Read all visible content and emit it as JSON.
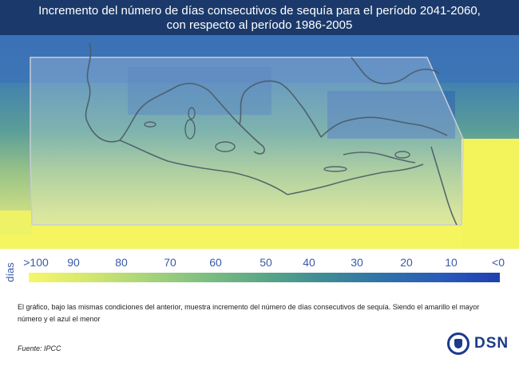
{
  "header": {
    "title_line1": "Incremento del número de días consecutivos de sequía para el período 2041-2060,",
    "title_line2": "con respecto al período 1986-2005"
  },
  "legend": {
    "unit": "días",
    "ticks": [
      ">100",
      "90",
      "80",
      "70",
      "60",
      "50",
      "40",
      "30",
      "20",
      "10",
      "<0"
    ],
    "color_high": "#f7f76a",
    "color_low": "#1f3fb0"
  },
  "description": "El gráfico, bajo las mismas condiciones del anterior, muestra incremento del número de días consecutivos de sequía. Siendo el amarillo el mayor número y el azul el menor",
  "source": "Fuente: IPCC",
  "logo": {
    "text": "DSN"
  }
}
